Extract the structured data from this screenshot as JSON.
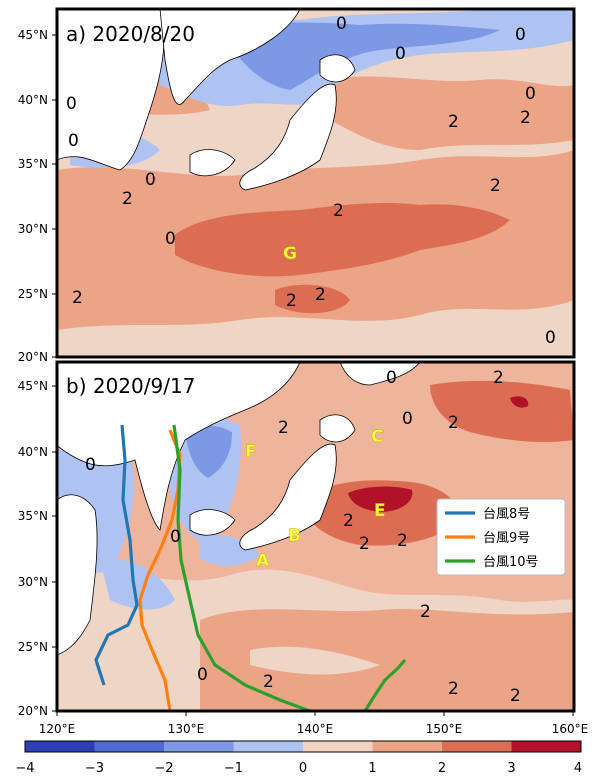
{
  "panels": [
    {
      "title": "a) 2020/8/20",
      "contour_labels": [
        "0",
        "0",
        "0",
        "0",
        "0",
        "0",
        "2",
        "2",
        "2",
        "0",
        "0",
        "2",
        "2",
        "2",
        "2",
        "2",
        "0"
      ],
      "regions": [
        "G"
      ]
    },
    {
      "title": "b) 2020/9/17",
      "contour_labels": [
        "0",
        "0",
        "0",
        "2",
        "2",
        "2",
        "2",
        "2",
        "2",
        "0",
        "2",
        "2",
        "2",
        "0",
        "2"
      ],
      "regions": [
        "A",
        "B",
        "C",
        "E",
        "F"
      ]
    }
  ],
  "axes": {
    "lat_labels": [
      "45°N",
      "40°N",
      "35°N",
      "30°N",
      "25°N",
      "20°N"
    ],
    "lon_labels": [
      "120°E",
      "130°E",
      "140°E",
      "150°E",
      "160°E"
    ],
    "lon_range": [
      120,
      160
    ],
    "lat_range": [
      20,
      47
    ]
  },
  "legend": {
    "items": [
      {
        "label": "台風8号",
        "color": "#1f77b4"
      },
      {
        "label": "台風9号",
        "color": "#ff7f0e"
      },
      {
        "label": "台風10号",
        "color": "#2ca02c"
      }
    ]
  },
  "colorbar": {
    "ticks": [
      "−4",
      "−3",
      "−2",
      "−1",
      "0",
      "1",
      "2",
      "3",
      "4"
    ],
    "colors": [
      "#2c3fb5",
      "#4d6bd3",
      "#7d99e6",
      "#aec3f1",
      "#d9e1f2",
      "#f3d3c3",
      "#eca487",
      "#db6e52",
      "#b21228"
    ]
  },
  "colors": {
    "land": "#ffffff",
    "frame": "#000000",
    "bg_warm": "#efb59c",
    "bg_neutral": "#efd5c6"
  }
}
